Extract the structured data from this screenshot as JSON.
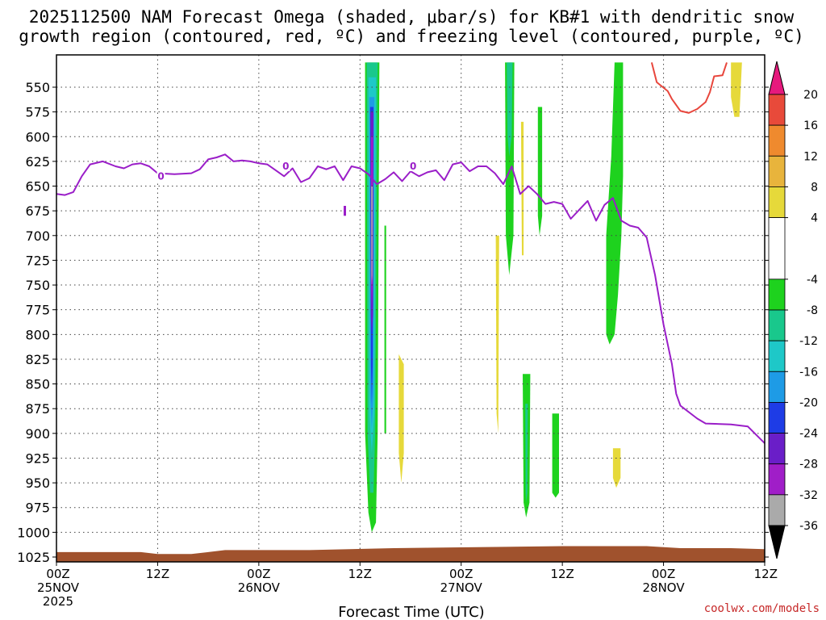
{
  "title_line1": "2025112500 NAM Forecast Omega (shaded, μbar/s) for KB#1 with dendritic snow",
  "title_line2": "growth region (contoured, red, ºC) and freezing level (contoured, purple, ºC)",
  "credit": "coolwx.com/models",
  "chart_data": {
    "type": "time-height cross section",
    "xlabel": "Forecast Time (UTC)",
    "x_ticks": [
      {
        "hour": 0,
        "line1": "00Z",
        "line2": "25NOV",
        "line3": "2025"
      },
      {
        "hour": 12,
        "line1": "12Z",
        "line2": "",
        "line3": ""
      },
      {
        "hour": 24,
        "line1": "00Z",
        "line2": "26NOV",
        "line3": ""
      },
      {
        "hour": 36,
        "line1": "12Z",
        "line2": "",
        "line3": ""
      },
      {
        "hour": 48,
        "line1": "00Z",
        "line2": "27NOV",
        "line3": ""
      },
      {
        "hour": 60,
        "line1": "12Z",
        "line2": "",
        "line3": ""
      },
      {
        "hour": 72,
        "line1": "00Z",
        "line2": "28NOV",
        "line3": ""
      },
      {
        "hour": 84,
        "line1": "12Z",
        "line2": "",
        "line3": ""
      }
    ],
    "x_range_hours": [
      0,
      84
    ],
    "ylabel": "",
    "y_ticks": [
      550,
      575,
      600,
      625,
      650,
      675,
      700,
      725,
      750,
      775,
      800,
      825,
      850,
      875,
      900,
      925,
      950,
      975,
      1000,
      1025
    ],
    "y_range_hpa": [
      525,
      1035
    ],
    "grid": true,
    "colorbar": {
      "ticks": [
        20,
        16,
        12,
        8,
        4,
        -4,
        -8,
        -12,
        -16,
        -20,
        -24,
        -28,
        -32,
        -36
      ],
      "bins": [
        {
          "from": 16,
          "to": 20,
          "color": "#e84a3a"
        },
        {
          "from": 12,
          "to": 16,
          "color": "#ef8a2e"
        },
        {
          "from": 8,
          "to": 12,
          "color": "#e8b43c"
        },
        {
          "from": 4,
          "to": 8,
          "color": "#e6d93a"
        },
        {
          "from": -4,
          "to": 4,
          "color": "#ffffff"
        },
        {
          "from": -8,
          "to": -4,
          "color": "#1ed21e"
        },
        {
          "from": -12,
          "to": -8,
          "color": "#19c88c"
        },
        {
          "from": -16,
          "to": -12,
          "color": "#1ec8c8"
        },
        {
          "from": -20,
          "to": -16,
          "color": "#1e9be6"
        },
        {
          "from": -24,
          "to": -20,
          "color": "#1e3ce6"
        },
        {
          "from": -28,
          "to": -24,
          "color": "#6a1ec8"
        },
        {
          "from": -32,
          "to": -28,
          "color": "#a01ec8"
        },
        {
          "from": -36,
          "to": -32,
          "color": "#aaaaaa"
        }
      ],
      "top_arrow_color": "#e6197d",
      "bottom_arrow_color": "#000000"
    },
    "freezing_level": {
      "label": "0",
      "color": "#9a1ec8",
      "points": [
        [
          0,
          658
        ],
        [
          1,
          659
        ],
        [
          2,
          656
        ],
        [
          3,
          640
        ],
        [
          4,
          628
        ],
        [
          5.5,
          625
        ],
        [
          7,
          630
        ],
        [
          8,
          632
        ],
        [
          9,
          628
        ],
        [
          10,
          627
        ],
        [
          11,
          630
        ],
        [
          12,
          637
        ],
        [
          14,
          638
        ],
        [
          16,
          637
        ],
        [
          17,
          633
        ],
        [
          18,
          623
        ],
        [
          19,
          621
        ],
        [
          20,
          618
        ],
        [
          21,
          625
        ],
        [
          22,
          624
        ],
        [
          23,
          625
        ],
        [
          24,
          627
        ],
        [
          25,
          628
        ],
        [
          26,
          634
        ],
        [
          27,
          640
        ],
        [
          28,
          632
        ],
        [
          29,
          646
        ],
        [
          30,
          642
        ],
        [
          31,
          630
        ],
        [
          32,
          633
        ],
        [
          33,
          630
        ],
        [
          34,
          644
        ],
        [
          35,
          630
        ],
        [
          36,
          632
        ],
        [
          37,
          638
        ],
        [
          38,
          648
        ],
        [
          39,
          643
        ],
        [
          40,
          636
        ],
        [
          41,
          645
        ],
        [
          42,
          635
        ],
        [
          43,
          640
        ],
        [
          44,
          636
        ],
        [
          45,
          634
        ],
        [
          46,
          644
        ],
        [
          47,
          628
        ],
        [
          48,
          626
        ],
        [
          49,
          635
        ],
        [
          50,
          630
        ],
        [
          51,
          630
        ],
        [
          52,
          637
        ],
        [
          53,
          648
        ],
        [
          54,
          630
        ],
        [
          55,
          658
        ],
        [
          56,
          650
        ],
        [
          57,
          658
        ],
        [
          58,
          668
        ],
        [
          59,
          666
        ],
        [
          60,
          668
        ],
        [
          61,
          683
        ],
        [
          62,
          674
        ],
        [
          63,
          665
        ],
        [
          64,
          685
        ],
        [
          65,
          669
        ],
        [
          66,
          662
        ],
        [
          67,
          685
        ],
        [
          68,
          690
        ],
        [
          69,
          692
        ],
        [
          70,
          702
        ],
        [
          71,
          740
        ],
        [
          72,
          790
        ],
        [
          73,
          830
        ],
        [
          73.5,
          860
        ],
        [
          74,
          872
        ],
        [
          76,
          885
        ],
        [
          77,
          890
        ],
        [
          80,
          891
        ],
        [
          82,
          893
        ],
        [
          84,
          910
        ]
      ],
      "extra_contour_points": [
        [
          34.2,
          670
        ],
        [
          34.2,
          680
        ]
      ]
    },
    "dendritic_region": {
      "color": "#e8463c",
      "points": [
        [
          70.6,
          525
        ],
        [
          71.2,
          545
        ],
        [
          72.5,
          554
        ],
        [
          73,
          562
        ],
        [
          74,
          574
        ],
        [
          75,
          576
        ],
        [
          76,
          572
        ],
        [
          77,
          565
        ],
        [
          77.5,
          555
        ],
        [
          78,
          539
        ],
        [
          79,
          538
        ],
        [
          79.5,
          525
        ]
      ]
    },
    "omega_features": [
      {
        "name": "main-ascent-outer",
        "color": "#1ed21e",
        "pts": [
          [
            36.6,
            525
          ],
          [
            38.3,
            525
          ],
          [
            38.1,
            900
          ],
          [
            37.9,
            990
          ],
          [
            37.4,
            1000
          ],
          [
            37,
            980
          ],
          [
            36.6,
            900
          ]
        ]
      },
      {
        "name": "main-ascent-l2",
        "color": "#19c88c",
        "pts": [
          [
            36.8,
            525
          ],
          [
            38.1,
            525
          ],
          [
            37.8,
            900
          ],
          [
            37.6,
            960
          ],
          [
            37.2,
            960
          ],
          [
            36.9,
            900
          ]
        ]
      },
      {
        "name": "main-ascent-l3",
        "color": "#1ec8c8",
        "pts": [
          [
            37,
            540
          ],
          [
            37.9,
            540
          ],
          [
            37.7,
            880
          ],
          [
            37.4,
            920
          ],
          [
            37.1,
            880
          ]
        ]
      },
      {
        "name": "main-ascent-l4",
        "color": "#1e9be6",
        "pts": [
          [
            37.1,
            560
          ],
          [
            37.7,
            560
          ],
          [
            37.6,
            860
          ],
          [
            37.4,
            895
          ],
          [
            37.2,
            860
          ]
        ]
      },
      {
        "name": "main-ascent-l5",
        "color": "#1e3ce6",
        "pts": [
          [
            37.2,
            570
          ],
          [
            37.6,
            570
          ],
          [
            37.5,
            830
          ],
          [
            37.4,
            870
          ],
          [
            37.3,
            830
          ]
        ]
      },
      {
        "name": "main-ascent-l6",
        "color": "#6a1ec8",
        "pts": [
          [
            37.25,
            575
          ],
          [
            37.6,
            575
          ],
          [
            37.55,
            780
          ],
          [
            37.4,
            800
          ],
          [
            37.28,
            780
          ]
        ]
      },
      {
        "name": "main-ascent-l7",
        "color": "#a01ec8",
        "pts": [
          [
            37.3,
            600
          ],
          [
            37.55,
            600
          ],
          [
            37.5,
            750
          ],
          [
            37.4,
            770
          ],
          [
            37.32,
            750
          ]
        ]
      },
      {
        "name": "main-ascent-core",
        "color": "#aaaaaa",
        "pts": [
          [
            37.33,
            650
          ],
          [
            37.5,
            650
          ],
          [
            37.47,
            740
          ],
          [
            37.4,
            750
          ],
          [
            37.35,
            740
          ]
        ]
      },
      {
        "name": "thin-strip-38-5",
        "color": "#1ed21e",
        "pts": [
          [
            38.9,
            690
          ],
          [
            39.1,
            690
          ],
          [
            39.1,
            900
          ],
          [
            38.9,
            900
          ]
        ]
      },
      {
        "name": "yellow-blob-40-5",
        "color": "#e6d93a",
        "pts": [
          [
            40.6,
            820
          ],
          [
            41.2,
            830
          ],
          [
            41.2,
            920
          ],
          [
            40.9,
            950
          ],
          [
            40.6,
            920
          ]
        ]
      },
      {
        "name": "green-band-53",
        "color": "#1ed21e",
        "pts": [
          [
            53.2,
            525
          ],
          [
            54.3,
            525
          ],
          [
            54.2,
            700
          ],
          [
            53.7,
            740
          ],
          [
            53.3,
            700
          ]
        ]
      },
      {
        "name": "teal-band-53",
        "color": "#19c88c",
        "pts": [
          [
            53.4,
            525
          ],
          [
            54.1,
            525
          ],
          [
            54.0,
            600
          ],
          [
            53.7,
            620
          ],
          [
            53.5,
            600
          ]
        ]
      },
      {
        "name": "yellow-strip-52",
        "color": "#e6d93a",
        "pts": [
          [
            52.1,
            700
          ],
          [
            52.5,
            700
          ],
          [
            52.4,
            900
          ],
          [
            52.2,
            880
          ]
        ]
      },
      {
        "name": "yellow-strip-55",
        "color": "#e6d93a",
        "pts": [
          [
            55.1,
            585
          ],
          [
            55.4,
            585
          ],
          [
            55.4,
            720
          ],
          [
            55.2,
            720
          ]
        ]
      },
      {
        "name": "green-strip-57",
        "color": "#1ed21e",
        "pts": [
          [
            57.1,
            570
          ],
          [
            57.6,
            570
          ],
          [
            57.6,
            680
          ],
          [
            57.3,
            700
          ],
          [
            57.1,
            680
          ]
        ]
      },
      {
        "name": "green-lower-56",
        "color": "#1ed21e",
        "pts": [
          [
            55.3,
            840
          ],
          [
            56.2,
            840
          ],
          [
            56.1,
            970
          ],
          [
            55.7,
            985
          ],
          [
            55.4,
            970
          ]
        ]
      },
      {
        "name": "teal-lower-56",
        "color": "#19c88c",
        "pts": [
          [
            55.6,
            870
          ],
          [
            55.9,
            870
          ],
          [
            55.85,
            960
          ],
          [
            55.7,
            970
          ],
          [
            55.65,
            960
          ]
        ]
      },
      {
        "name": "green-blob-59",
        "color": "#1ed21e",
        "pts": [
          [
            58.8,
            880
          ],
          [
            59.6,
            880
          ],
          [
            59.6,
            960
          ],
          [
            59.2,
            965
          ],
          [
            58.8,
            960
          ]
        ]
      },
      {
        "name": "green-column-66",
        "color": "#1ed21e",
        "pts": [
          [
            66.2,
            525
          ],
          [
            67.2,
            525
          ],
          [
            67.2,
            640
          ],
          [
            67.0,
            700
          ],
          [
            66.6,
            760
          ],
          [
            66.2,
            800
          ],
          [
            65.6,
            810
          ],
          [
            65.2,
            800
          ],
          [
            65.2,
            700
          ],
          [
            65.8,
            620
          ]
        ]
      },
      {
        "name": "yellow-blob-67",
        "color": "#e6d93a",
        "pts": [
          [
            66.0,
            915
          ],
          [
            66.9,
            915
          ],
          [
            66.9,
            945
          ],
          [
            66.4,
            955
          ],
          [
            66.0,
            945
          ]
        ]
      },
      {
        "name": "yellow-blob-78",
        "color": "#e6d93a",
        "pts": [
          [
            80.0,
            525
          ],
          [
            81.3,
            525
          ],
          [
            81.0,
            580
          ],
          [
            80.4,
            580
          ],
          [
            80.0,
            560
          ]
        ]
      }
    ],
    "terrain": {
      "color": "#a0522d",
      "points": [
        [
          0,
          1020
        ],
        [
          10,
          1020
        ],
        [
          12,
          1022
        ],
        [
          16,
          1022
        ],
        [
          20,
          1018
        ],
        [
          30,
          1018
        ],
        [
          40,
          1016
        ],
        [
          50,
          1015
        ],
        [
          60,
          1014
        ],
        [
          70,
          1014
        ],
        [
          74,
          1016
        ],
        [
          80,
          1016
        ],
        [
          84,
          1017
        ]
      ]
    }
  }
}
